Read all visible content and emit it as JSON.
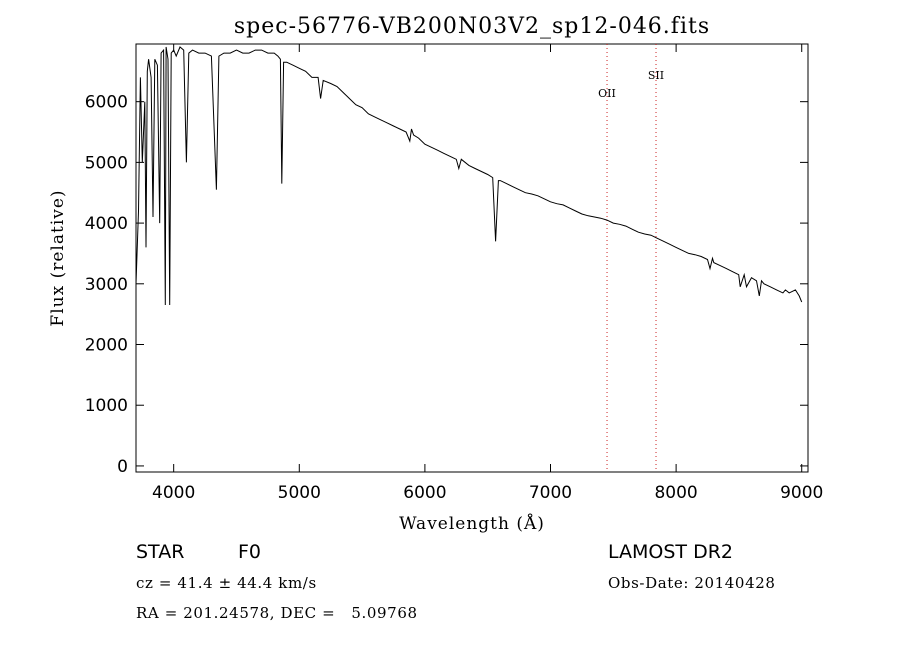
{
  "chart_data": {
    "type": "line",
    "title": "spec-56776-VB200N03V2_sp12-046.fits",
    "xlabel": "Wavelength (Å)",
    "ylabel": "Flux (relative)",
    "xlim": [
      3700,
      9050
    ],
    "ylim": [
      -100,
      6950
    ],
    "xticks": [
      4000,
      5000,
      6000,
      7000,
      8000,
      9000
    ],
    "yticks": [
      0,
      1000,
      2000,
      3000,
      4000,
      5000,
      6000
    ],
    "grid": false,
    "line_color": "#000000",
    "marker_color": "#cc2222",
    "series": [
      {
        "x": [
          3700,
          3720,
          3735,
          3750,
          3770,
          3780,
          3790,
          3800,
          3820,
          3835,
          3850,
          3870,
          3889,
          3900,
          3920,
          3933,
          3940,
          3955,
          3968,
          3980,
          4000,
          4020,
          4050,
          4080,
          4101,
          4120,
          4150,
          4200,
          4250,
          4300,
          4340,
          4360,
          4400,
          4450,
          4500,
          4550,
          4600,
          4650,
          4700,
          4750,
          4800,
          4830,
          4850,
          4861,
          4875,
          4900,
          4950,
          5000,
          5050,
          5100,
          5150,
          5170,
          5190,
          5250,
          5300,
          5350,
          5400,
          5450,
          5500,
          5550,
          5600,
          5650,
          5700,
          5750,
          5800,
          5850,
          5880,
          5893,
          5910,
          5950,
          6000,
          6050,
          6100,
          6150,
          6200,
          6250,
          6270,
          6290,
          6350,
          6400,
          6450,
          6500,
          6540,
          6563,
          6585,
          6600,
          6650,
          6700,
          6750,
          6800,
          6850,
          6900,
          6950,
          7000,
          7050,
          7100,
          7150,
          7200,
          7250,
          7300,
          7350,
          7400,
          7450,
          7500,
          7550,
          7600,
          7650,
          7700,
          7750,
          7800,
          7850,
          7900,
          7950,
          8000,
          8050,
          8100,
          8150,
          8200,
          8250,
          8270,
          8290,
          8300,
          8350,
          8400,
          8450,
          8498,
          8510,
          8542,
          8560,
          8600,
          8640,
          8662,
          8680,
          8700,
          8750,
          8800,
          8850,
          8870,
          8900,
          8950,
          8980,
          9000
        ],
        "y": [
          3000,
          4200,
          6400,
          5000,
          6000,
          3600,
          6500,
          6700,
          6400,
          4100,
          6700,
          6600,
          4000,
          6800,
          6850,
          2650,
          6900,
          6700,
          2650,
          6800,
          6850,
          6750,
          6900,
          6850,
          5000,
          6800,
          6850,
          6800,
          6800,
          6750,
          4550,
          6750,
          6800,
          6800,
          6850,
          6800,
          6800,
          6850,
          6850,
          6800,
          6800,
          6750,
          6700,
          4650,
          6650,
          6650,
          6600,
          6550,
          6500,
          6400,
          6400,
          6050,
          6350,
          6300,
          6250,
          6150,
          6050,
          5950,
          5900,
          5800,
          5750,
          5700,
          5650,
          5600,
          5550,
          5500,
          5350,
          5550,
          5450,
          5400,
          5300,
          5250,
          5200,
          5150,
          5100,
          5050,
          4900,
          5050,
          4950,
          4900,
          4850,
          4800,
          4750,
          3700,
          4700,
          4700,
          4650,
          4600,
          4550,
          4500,
          4480,
          4450,
          4400,
          4350,
          4320,
          4300,
          4250,
          4200,
          4150,
          4120,
          4100,
          4080,
          4050,
          4000,
          3980,
          3950,
          3900,
          3850,
          3820,
          3800,
          3750,
          3700,
          3650,
          3600,
          3550,
          3500,
          3480,
          3450,
          3400,
          3250,
          3420,
          3350,
          3300,
          3250,
          3200,
          3150,
          2950,
          3150,
          2950,
          3100,
          3050,
          2800,
          3050,
          3000,
          2950,
          2900,
          2850,
          2900,
          2850,
          2900,
          2800,
          2700
        ]
      }
    ],
    "line_markers": [
      {
        "label": "OII",
        "x": 7450
      },
      {
        "label": "SII",
        "x": 7840
      }
    ]
  },
  "info": {
    "object_type": "STAR",
    "subclass": "F0",
    "survey": "LAMOST DR2",
    "redshift_text": "cz = 41.4 ± 44.4 km/s",
    "obs_date_text": "Obs-Date: 20140428",
    "coords_text": "RA = 201.24578, DEC =   5.09768"
  }
}
